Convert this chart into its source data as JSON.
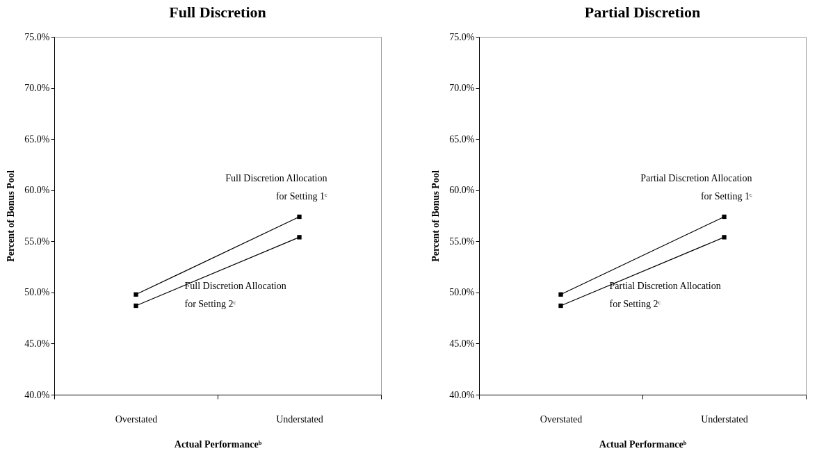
{
  "chart_data": [
    {
      "type": "line",
      "title": "Full Discretion",
      "xlabel": "Actual Performanceᵇ",
      "ylabel": "Percent of Bonus Pool",
      "categories": [
        "Overstated",
        "Understated"
      ],
      "marker": "square",
      "grid": false,
      "legend": false,
      "ylim": [
        40,
        75
      ],
      "yticks": [
        {
          "value": 40,
          "label": "40.0%"
        },
        {
          "value": 45,
          "label": "45.0%"
        },
        {
          "value": 50,
          "label": "50.0%"
        },
        {
          "value": 55,
          "label": "55.0%"
        },
        {
          "value": 60,
          "label": "60.0%"
        },
        {
          "value": 65,
          "label": "65.0%"
        },
        {
          "value": 70,
          "label": "70.0%"
        },
        {
          "value": 75,
          "label": "75.0%"
        }
      ],
      "series": [
        {
          "name": "Full Discretion Allocation\nfor Setting 1ᶜ",
          "color": "#000000",
          "values": [
            49.8,
            57.4
          ]
        },
        {
          "name": "Full Discretion Allocation\nfor Setting 2ᶜ",
          "color": "#000000",
          "values": [
            48.7,
            55.4
          ]
        }
      ]
    },
    {
      "type": "line",
      "title": "Partial Discretion",
      "xlabel": "Actual Performanceᵇ",
      "ylabel": "Percent of Bonus Pool",
      "categories": [
        "Overstated",
        "Understated"
      ],
      "marker": "square",
      "grid": false,
      "legend": false,
      "ylim": [
        40,
        75
      ],
      "yticks": [
        {
          "value": 40,
          "label": "40.0%"
        },
        {
          "value": 45,
          "label": "45.0%"
        },
        {
          "value": 50,
          "label": "50.0%"
        },
        {
          "value": 55,
          "label": "55.0%"
        },
        {
          "value": 60,
          "label": "60.0%"
        },
        {
          "value": 65,
          "label": "65.0%"
        },
        {
          "value": 70,
          "label": "70.0%"
        },
        {
          "value": 75,
          "label": "75.0%"
        }
      ],
      "series": [
        {
          "name": "Partial Discretion Allocation\nfor Setting 1ᶜ",
          "color": "#000000",
          "values": [
            49.8,
            57.4
          ]
        },
        {
          "name": "Partial Discretion Allocation\nfor Setting 2ᶜ",
          "color": "#000000",
          "values": [
            48.7,
            55.4
          ]
        }
      ]
    }
  ]
}
